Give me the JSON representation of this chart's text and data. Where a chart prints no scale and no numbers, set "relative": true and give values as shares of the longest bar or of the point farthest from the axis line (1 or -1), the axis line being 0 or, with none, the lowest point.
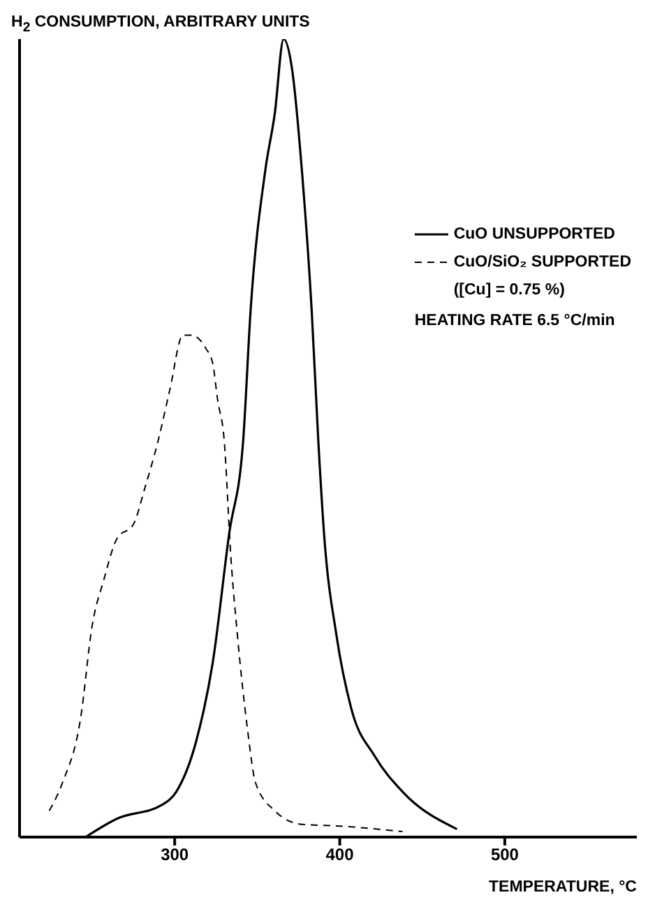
{
  "chart_data": {
    "type": "line",
    "ylabel": "H$_{2}$ CONSUMPTION, ARBITRARY UNITS",
    "xlabel": "TEMPERATURE, °C",
    "relative": true,
    "xlim": [
      206,
      580
    ],
    "xticks": [
      300,
      400,
      500
    ],
    "legend": "top right",
    "marker": "none",
    "annotations": [
      "([Cu] = 0.75 %)",
      "HEATING RATE 6.5 °C/min"
    ],
    "series": [
      {
        "name": "CuO UNSUPPORTED",
        "color": "#000000",
        "line_style": "solid",
        "x": [
          246,
          265,
          292,
          301,
          313,
          323,
          333,
          341.5,
          346,
          355,
          360.6,
          366,
          371,
          377,
          383,
          387,
          390.5,
          398,
          407,
          421,
          438,
          471
        ],
        "values": [
          0,
          0.023,
          0.04,
          0.057,
          0.12,
          0.218,
          0.38,
          0.497,
          0.66,
          0.837,
          0.906,
          1,
          0.964,
          0.837,
          0.66,
          0.497,
          0.38,
          0.253,
          0.161,
          0.102,
          0.057,
          0.01
        ]
      },
      {
        "name": "CuO/SiO₂ SUPPORTED",
        "color": "#000000",
        "line_style": "dashed",
        "x": [
          224,
          232,
          243,
          250,
          257,
          265,
          275,
          282,
          290,
          297,
          305,
          310,
          319,
          323,
          326,
          330,
          334,
          338,
          344,
          349,
          360.6,
          377,
          398,
          438
        ],
        "values": [
          0.033,
          0.068,
          0.149,
          0.265,
          0.322,
          0.374,
          0.392,
          0.438,
          0.497,
          0.56,
          0.629,
          0.629,
          0.612,
          0.594,
          0.548,
          0.497,
          0.352,
          0.253,
          0.137,
          0.068,
          0.033,
          0.016,
          0.014,
          0.007
        ]
      }
    ]
  }
}
